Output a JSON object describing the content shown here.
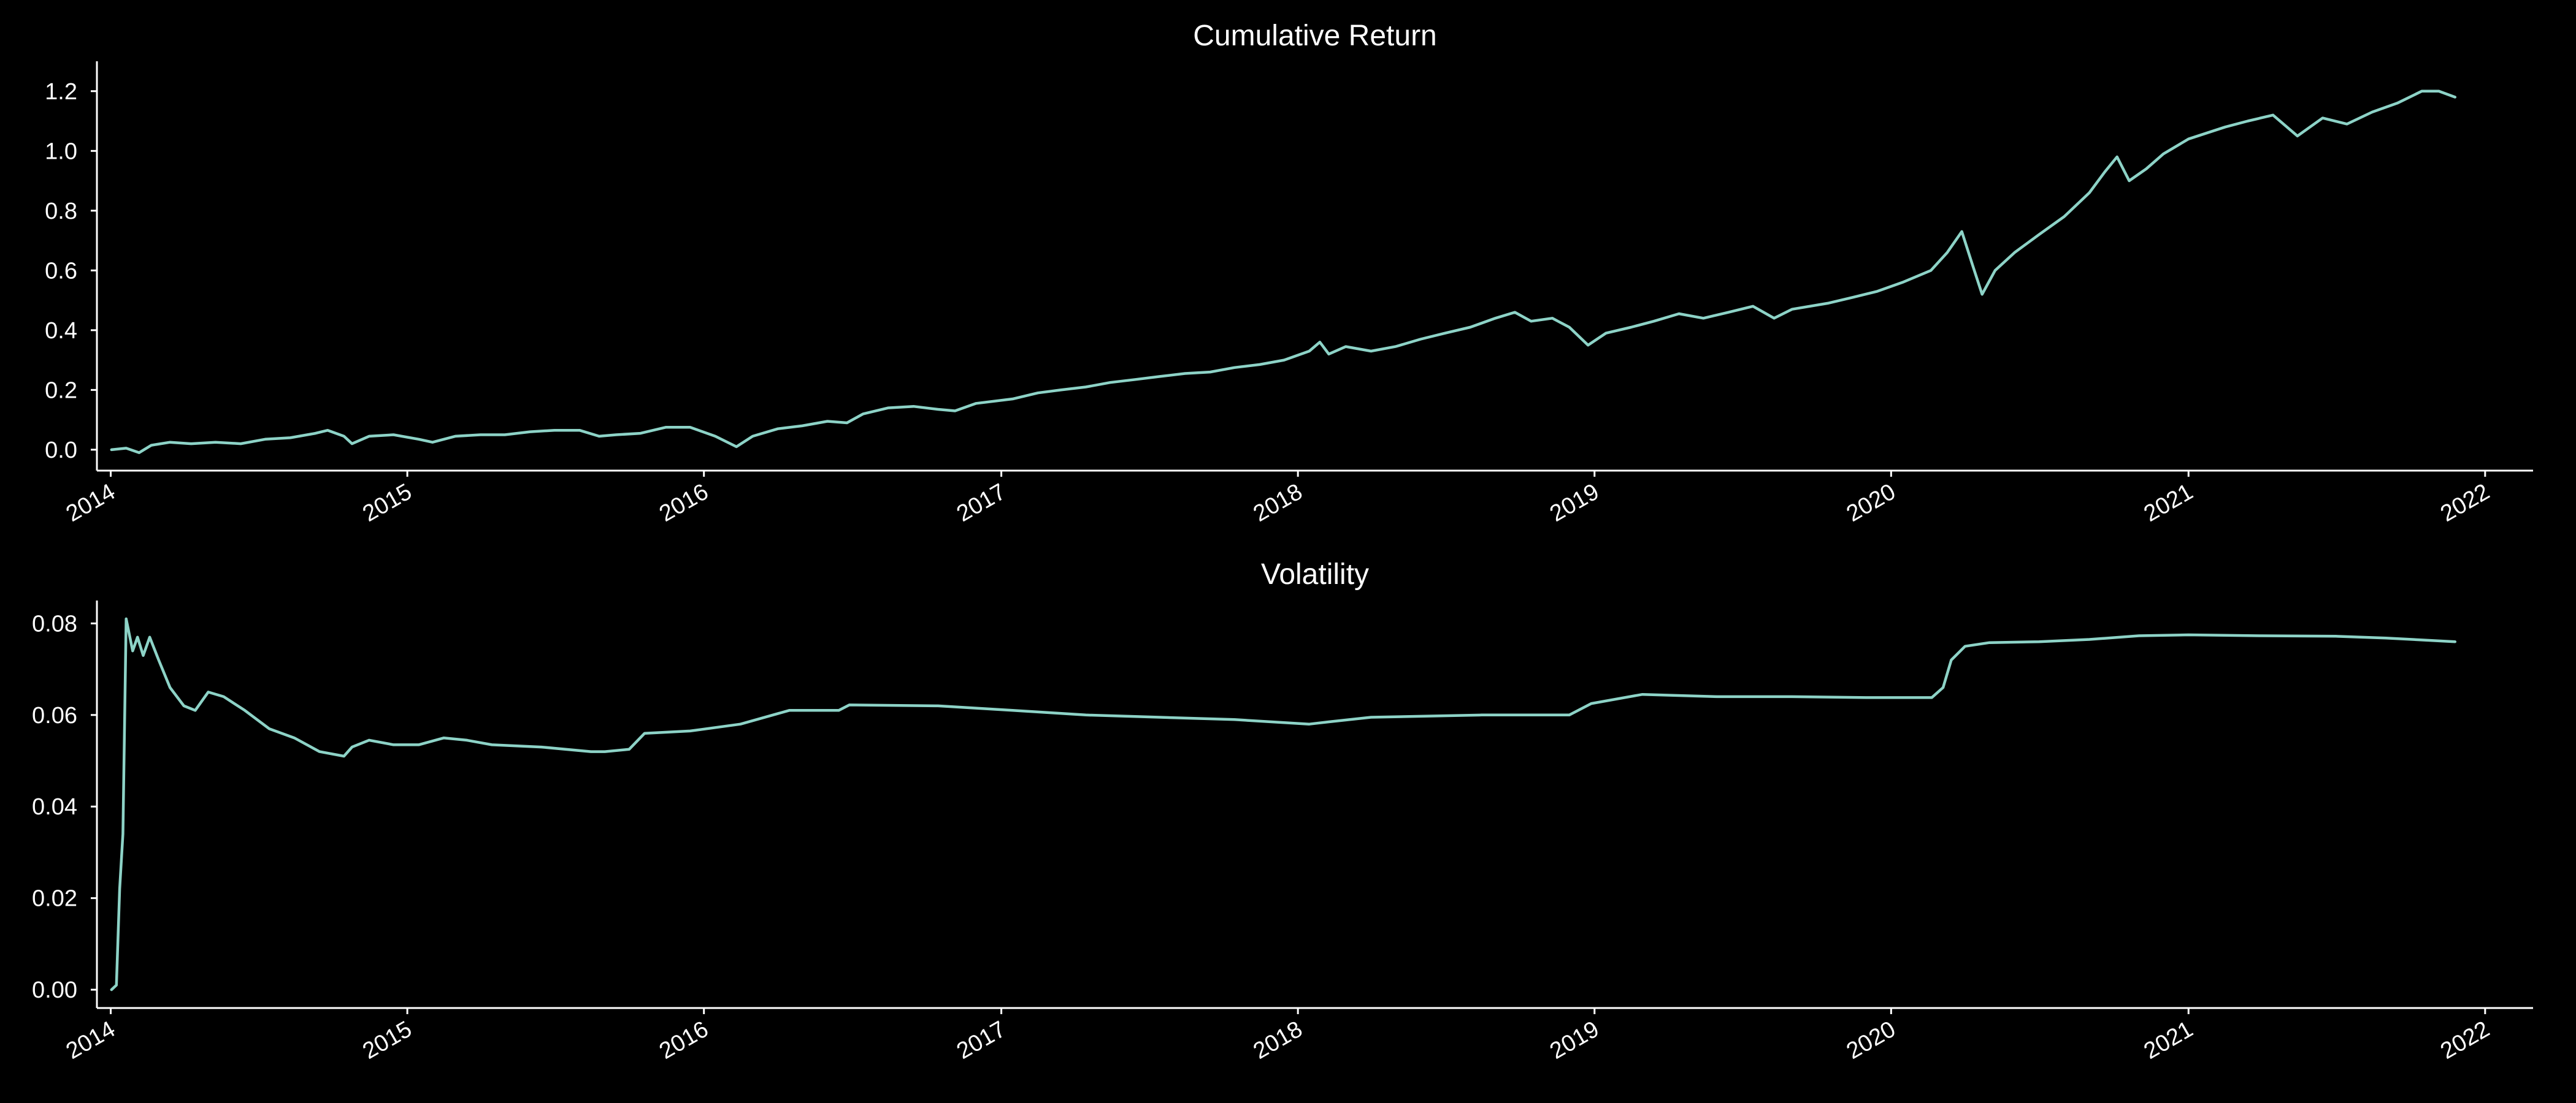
{
  "colors": {
    "background": "#000000",
    "axes": "#ffffff",
    "text": "#ffffff",
    "series": "#8dd3c7"
  },
  "chart_data": [
    {
      "type": "line",
      "title": "Cumulative Return",
      "xlabel": "",
      "ylabel": "",
      "xlim": [
        "2013-12-15",
        "2022-03-01"
      ],
      "ylim": [
        -0.07,
        1.3
      ],
      "x_ticks": [
        "2014",
        "2015",
        "2016",
        "2017",
        "2018",
        "2019",
        "2020",
        "2021",
        "2022"
      ],
      "y_ticks": [
        "0.0",
        "0.2",
        "0.4",
        "0.6",
        "0.8",
        "1.0",
        "1.2"
      ],
      "grid": false,
      "legend": "none",
      "series": [
        {
          "color": "#8dd3c7",
          "points": [
            [
              "2014-01-02",
              0.0
            ],
            [
              "2014-01-20",
              0.005
            ],
            [
              "2014-02-05",
              -0.01
            ],
            [
              "2014-02-20",
              0.015
            ],
            [
              "2014-03-15",
              0.025
            ],
            [
              "2014-04-10",
              0.02
            ],
            [
              "2014-05-10",
              0.025
            ],
            [
              "2014-06-10",
              0.02
            ],
            [
              "2014-07-10",
              0.035
            ],
            [
              "2014-08-10",
              0.04
            ],
            [
              "2014-09-10",
              0.055
            ],
            [
              "2014-09-25",
              0.065
            ],
            [
              "2014-10-15",
              0.045
            ],
            [
              "2014-10-25",
              0.02
            ],
            [
              "2014-11-15",
              0.045
            ],
            [
              "2014-12-15",
              0.05
            ],
            [
              "2015-01-15",
              0.035
            ],
            [
              "2015-02-01",
              0.025
            ],
            [
              "2015-03-01",
              0.045
            ],
            [
              "2015-04-01",
              0.05
            ],
            [
              "2015-05-01",
              0.05
            ],
            [
              "2015-06-01",
              0.06
            ],
            [
              "2015-07-01",
              0.065
            ],
            [
              "2015-08-01",
              0.065
            ],
            [
              "2015-08-25",
              0.045
            ],
            [
              "2015-09-15",
              0.05
            ],
            [
              "2015-10-15",
              0.055
            ],
            [
              "2015-11-15",
              0.075
            ],
            [
              "2015-12-15",
              0.075
            ],
            [
              "2016-01-15",
              0.045
            ],
            [
              "2016-02-10",
              0.01
            ],
            [
              "2016-03-01",
              0.045
            ],
            [
              "2016-04-01",
              0.07
            ],
            [
              "2016-05-01",
              0.08
            ],
            [
              "2016-06-01",
              0.095
            ],
            [
              "2016-06-25",
              0.09
            ],
            [
              "2016-07-15",
              0.12
            ],
            [
              "2016-08-15",
              0.14
            ],
            [
              "2016-09-15",
              0.145
            ],
            [
              "2016-10-15",
              0.135
            ],
            [
              "2016-11-05",
              0.13
            ],
            [
              "2016-12-01",
              0.155
            ],
            [
              "2017-01-15",
              0.17
            ],
            [
              "2017-02-15",
              0.19
            ],
            [
              "2017-03-15",
              0.2
            ],
            [
              "2017-04-15",
              0.21
            ],
            [
              "2017-05-15",
              0.225
            ],
            [
              "2017-06-15",
              0.235
            ],
            [
              "2017-07-15",
              0.245
            ],
            [
              "2017-08-15",
              0.255
            ],
            [
              "2017-09-15",
              0.26
            ],
            [
              "2017-10-15",
              0.275
            ],
            [
              "2017-11-15",
              0.285
            ],
            [
              "2017-12-15",
              0.3
            ],
            [
              "2018-01-15",
              0.33
            ],
            [
              "2018-01-28",
              0.36
            ],
            [
              "2018-02-08",
              0.32
            ],
            [
              "2018-03-01",
              0.345
            ],
            [
              "2018-04-01",
              0.33
            ],
            [
              "2018-05-01",
              0.345
            ],
            [
              "2018-06-01",
              0.37
            ],
            [
              "2018-07-01",
              0.39
            ],
            [
              "2018-08-01",
              0.41
            ],
            [
              "2018-09-01",
              0.44
            ],
            [
              "2018-09-25",
              0.46
            ],
            [
              "2018-10-15",
              0.43
            ],
            [
              "2018-11-10",
              0.44
            ],
            [
              "2018-12-01",
              0.41
            ],
            [
              "2018-12-24",
              0.35
            ],
            [
              "2019-01-15",
              0.39
            ],
            [
              "2019-02-15",
              0.41
            ],
            [
              "2019-03-15",
              0.43
            ],
            [
              "2019-04-15",
              0.455
            ],
            [
              "2019-05-15",
              0.44
            ],
            [
              "2019-06-15",
              0.46
            ],
            [
              "2019-07-15",
              0.48
            ],
            [
              "2019-08-10",
              0.44
            ],
            [
              "2019-09-01",
              0.47
            ],
            [
              "2019-10-15",
              0.49
            ],
            [
              "2019-11-15",
              0.51
            ],
            [
              "2019-12-15",
              0.53
            ],
            [
              "2020-01-15",
              0.56
            ],
            [
              "2020-02-19",
              0.6
            ],
            [
              "2020-03-10",
              0.66
            ],
            [
              "2020-03-28",
              0.73
            ],
            [
              "2020-04-10",
              0.62
            ],
            [
              "2020-04-22",
              0.52
            ],
            [
              "2020-05-08",
              0.6
            ],
            [
              "2020-06-01",
              0.66
            ],
            [
              "2020-07-01",
              0.72
            ],
            [
              "2020-08-01",
              0.78
            ],
            [
              "2020-09-01",
              0.86
            ],
            [
              "2020-09-20",
              0.93
            ],
            [
              "2020-10-05",
              0.98
            ],
            [
              "2020-10-20",
              0.9
            ],
            [
              "2020-11-10",
              0.94
            ],
            [
              "2020-12-01",
              0.99
            ],
            [
              "2021-01-01",
              1.04
            ],
            [
              "2021-02-15",
              1.08
            ],
            [
              "2021-03-15",
              1.1
            ],
            [
              "2021-04-15",
              1.12
            ],
            [
              "2021-05-15",
              1.05
            ],
            [
              "2021-06-15",
              1.11
            ],
            [
              "2021-07-15",
              1.09
            ],
            [
              "2021-08-15",
              1.13
            ],
            [
              "2021-09-15",
              1.16
            ],
            [
              "2021-10-15",
              1.2
            ],
            [
              "2021-11-05",
              1.2
            ],
            [
              "2021-11-25",
              1.18
            ]
          ]
        }
      ]
    },
    {
      "type": "line",
      "title": "Volatility",
      "xlabel": "",
      "ylabel": "",
      "xlim": [
        "2013-12-15",
        "2022-03-01"
      ],
      "ylim": [
        -0.004,
        0.085
      ],
      "x_ticks": [
        "2014",
        "2015",
        "2016",
        "2017",
        "2018",
        "2019",
        "2020",
        "2021",
        "2022"
      ],
      "y_ticks": [
        "0.00",
        "0.02",
        "0.04",
        "0.06",
        "0.08"
      ],
      "grid": false,
      "legend": "none",
      "series": [
        {
          "color": "#8dd3c7",
          "points": [
            [
              "2014-01-02",
              0.0
            ],
            [
              "2014-01-08",
              0.001
            ],
            [
              "2014-01-12",
              0.022
            ],
            [
              "2014-01-16",
              0.034
            ],
            [
              "2014-01-20",
              0.081
            ],
            [
              "2014-01-28",
              0.074
            ],
            [
              "2014-02-03",
              0.077
            ],
            [
              "2014-02-10",
              0.073
            ],
            [
              "2014-02-18",
              0.077
            ],
            [
              "2014-03-01",
              0.072
            ],
            [
              "2014-03-15",
              0.066
            ],
            [
              "2014-04-01",
              0.062
            ],
            [
              "2014-04-15",
              0.061
            ],
            [
              "2014-05-01",
              0.065
            ],
            [
              "2014-05-20",
              0.064
            ],
            [
              "2014-06-15",
              0.061
            ],
            [
              "2014-07-15",
              0.057
            ],
            [
              "2014-08-15",
              0.055
            ],
            [
              "2014-09-15",
              0.052
            ],
            [
              "2014-10-15",
              0.051
            ],
            [
              "2014-10-25",
              0.053
            ],
            [
              "2014-11-15",
              0.0545
            ],
            [
              "2014-12-15",
              0.0535
            ],
            [
              "2015-01-15",
              0.0535
            ],
            [
              "2015-02-15",
              0.055
            ],
            [
              "2015-03-15",
              0.0545
            ],
            [
              "2015-04-15",
              0.0535
            ],
            [
              "2015-06-15",
              0.053
            ],
            [
              "2015-08-15",
              0.052
            ],
            [
              "2015-09-01",
              0.052
            ],
            [
              "2015-10-01",
              0.0525
            ],
            [
              "2015-10-20",
              0.056
            ],
            [
              "2015-12-15",
              0.0565
            ],
            [
              "2016-02-15",
              0.058
            ],
            [
              "2016-04-15",
              0.061
            ],
            [
              "2016-06-15",
              0.061
            ],
            [
              "2016-06-28",
              0.0622
            ],
            [
              "2016-10-15",
              0.062
            ],
            [
              "2017-01-15",
              0.061
            ],
            [
              "2017-04-15",
              0.06
            ],
            [
              "2017-07-15",
              0.0595
            ],
            [
              "2017-10-15",
              0.059
            ],
            [
              "2018-01-15",
              0.058
            ],
            [
              "2018-02-08",
              0.0585
            ],
            [
              "2018-04-01",
              0.0595
            ],
            [
              "2018-08-15",
              0.06
            ],
            [
              "2018-12-01",
              0.06
            ],
            [
              "2018-12-28",
              0.0625
            ],
            [
              "2019-03-01",
              0.0645
            ],
            [
              "2019-06-01",
              0.064
            ],
            [
              "2019-09-01",
              0.064
            ],
            [
              "2019-12-01",
              0.0638
            ],
            [
              "2020-02-20",
              0.0638
            ],
            [
              "2020-03-05",
              0.066
            ],
            [
              "2020-03-15",
              0.072
            ],
            [
              "2020-04-01",
              0.075
            ],
            [
              "2020-05-01",
              0.0758
            ],
            [
              "2020-07-01",
              0.076
            ],
            [
              "2020-09-01",
              0.0765
            ],
            [
              "2020-11-01",
              0.0773
            ],
            [
              "2021-01-01",
              0.0775
            ],
            [
              "2021-04-01",
              0.0773
            ],
            [
              "2021-07-01",
              0.0772
            ],
            [
              "2021-09-01",
              0.0768
            ],
            [
              "2021-11-25",
              0.076
            ]
          ]
        }
      ]
    }
  ]
}
